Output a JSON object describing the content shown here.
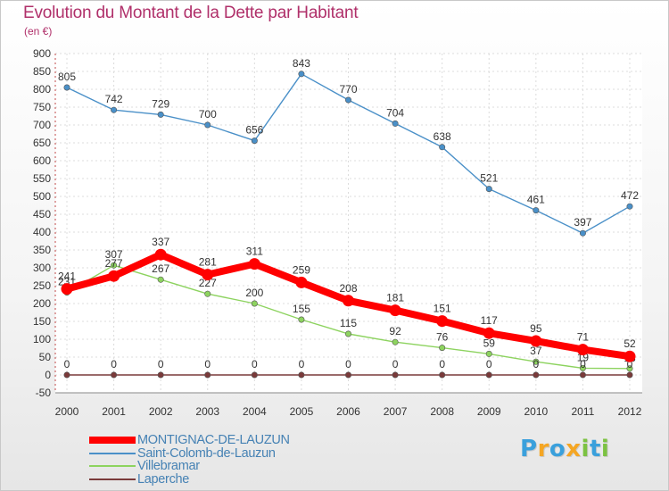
{
  "header": {
    "title": "Evolution du Montant de la Dette par Habitant",
    "subtitle": "(en €)"
  },
  "chart_data": {
    "type": "line",
    "title": "Evolution du Montant de la Dette par Habitant",
    "ylabel": "(en €)",
    "xlabel": "",
    "ylim": [
      -50,
      900
    ],
    "yticks": [
      "-50",
      "0",
      "50",
      "100",
      "150",
      "200",
      "250",
      "300",
      "350",
      "400",
      "450",
      "500",
      "550",
      "600",
      "650",
      "700",
      "750",
      "800",
      "850",
      "900"
    ],
    "categories": [
      "2000",
      "2001",
      "2002",
      "2003",
      "2004",
      "2005",
      "2006",
      "2007",
      "2008",
      "2009",
      "2010",
      "2011",
      "2012"
    ],
    "grid": true,
    "legend_position": "bottom-left",
    "series": [
      {
        "name": "Saint-Colomb-de-Lauzun",
        "color": "#4a90c8",
        "values": [
          805,
          742,
          729,
          700,
          656,
          843,
          770,
          704,
          638,
          521,
          461,
          397,
          472
        ],
        "labels": [
          "805",
          "742",
          "729",
          "700",
          "656",
          "843",
          "770",
          "704",
          "638",
          "521",
          "461",
          "397",
          "472"
        ]
      },
      {
        "name": "Villebramar",
        "color": "#8dd35f",
        "values": [
          231,
          307,
          267,
          227,
          200,
          155,
          115,
          92,
          76,
          59,
          37,
          19,
          18
        ],
        "labels": [
          "231",
          "307",
          "267",
          "227",
          "200",
          "155",
          "115",
          "92",
          "76",
          "59",
          "37",
          "19",
          "18"
        ]
      },
      {
        "name": "Laperche",
        "color": "#7a3a3a",
        "values": [
          0,
          0,
          0,
          0,
          0,
          0,
          0,
          0,
          0,
          0,
          0,
          0,
          0
        ],
        "labels": [
          "0",
          "0",
          "0",
          "0",
          "0",
          "0",
          "0",
          "0",
          "0",
          "0",
          "0",
          "0",
          "0"
        ]
      },
      {
        "name": "MONTIGNAC-DE-LAUZUN",
        "color": "#ff0000",
        "values": [
          241,
          277,
          337,
          281,
          311,
          259,
          208,
          181,
          151,
          117,
          95,
          71,
          52
        ],
        "labels": [
          "241",
          "277",
          "337",
          "281",
          "311",
          "259",
          "208",
          "181",
          "151",
          "117",
          "95",
          "71",
          "52"
        ]
      }
    ]
  },
  "legend": [
    {
      "label": "MONTIGNAC-DE-LAUZUN",
      "color": "#ff0000"
    },
    {
      "label": "Saint-Colomb-de-Lauzun",
      "color": "#4a90c8"
    },
    {
      "label": "Villebramar",
      "color": "#8dd35f"
    },
    {
      "label": "Laperche",
      "color": "#7a3a3a"
    }
  ],
  "brand": {
    "letters": [
      "P",
      "r",
      "o",
      "x",
      "i",
      "t",
      "i"
    ],
    "colors": [
      "#3aa0dc",
      "#f5a623",
      "#3aa0dc",
      "#f5a623",
      "#7cc242",
      "#3aa0dc",
      "#7cc242"
    ]
  }
}
